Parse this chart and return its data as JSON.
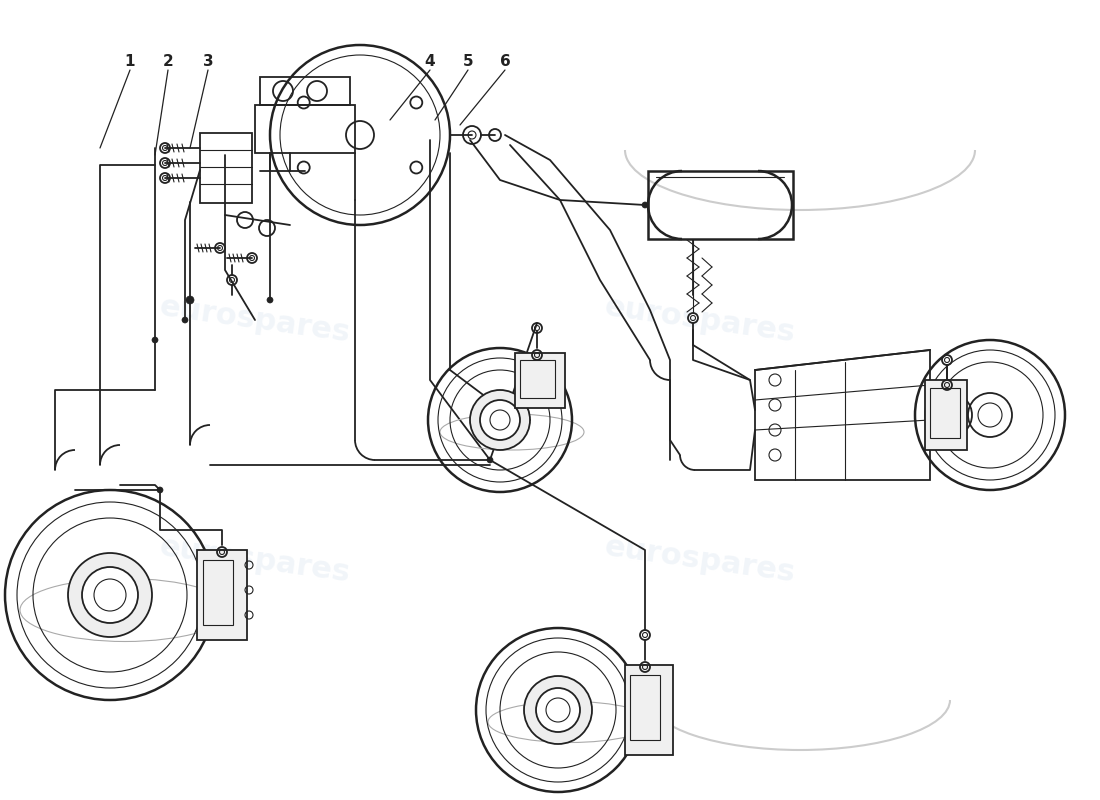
{
  "bg": "#ffffff",
  "lc": "#222222",
  "wm_color": "#c8d8e8",
  "wm_text": "eurospares",
  "fig_w": 11.0,
  "fig_h": 8.0,
  "dpi": 100
}
